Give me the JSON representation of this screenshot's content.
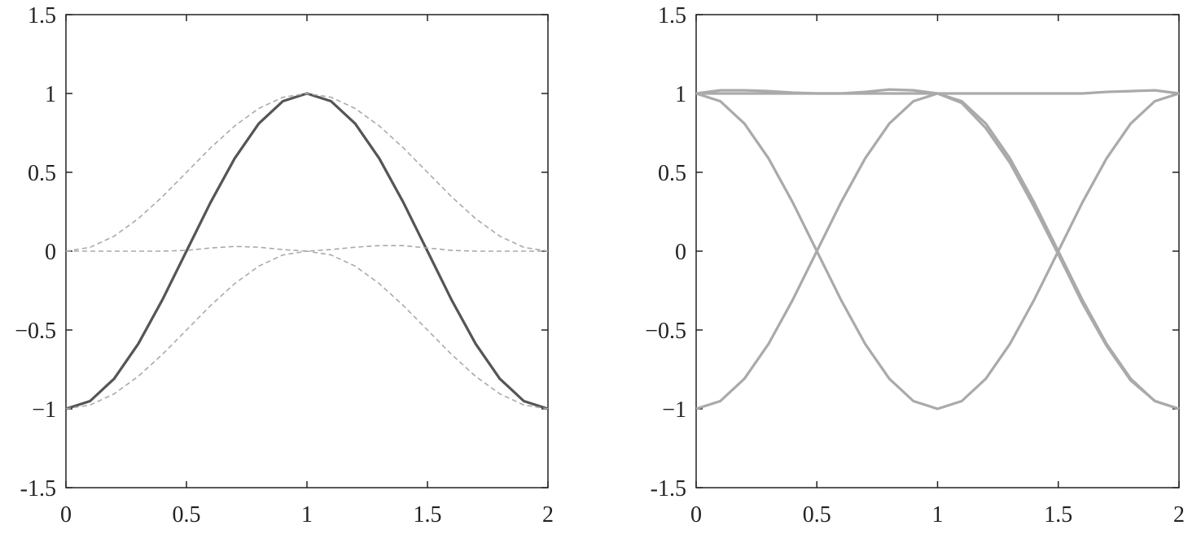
{
  "chart_data": [
    {
      "type": "line",
      "x": [
        0,
        0.1,
        0.2,
        0.3,
        0.4,
        0.5,
        0.6,
        0.7,
        0.8,
        0.9,
        1,
        1.1,
        1.2,
        1.3,
        1.4,
        1.5,
        1.6,
        1.7,
        1.8,
        1.9,
        2
      ],
      "series": [
        {
          "color": "#555555",
          "style": "solid",
          "values": [
            -1,
            -0.951,
            -0.809,
            -0.588,
            -0.309,
            0,
            0.309,
            0.588,
            0.809,
            0.951,
            1,
            0.951,
            0.809,
            0.588,
            0.309,
            0,
            -0.309,
            -0.588,
            -0.809,
            -0.951,
            -1
          ]
        },
        {
          "color": "#aaaaaa",
          "style": "dashed",
          "values": [
            0,
            0.024,
            0.095,
            0.206,
            0.345,
            0.5,
            0.655,
            0.794,
            0.905,
            0.976,
            1,
            0.976,
            0.905,
            0.794,
            0.655,
            0.5,
            0.345,
            0.206,
            0.095,
            0.024,
            0
          ]
        },
        {
          "color": "#aaaaaa",
          "style": "dashed",
          "values": [
            -1,
            -0.976,
            -0.905,
            -0.794,
            -0.655,
            -0.5,
            -0.345,
            -0.206,
            -0.095,
            -0.024,
            0,
            -0.024,
            -0.095,
            -0.206,
            -0.345,
            -0.5,
            -0.655,
            -0.794,
            -0.905,
            -0.976,
            -1
          ]
        },
        {
          "color": "#aaaaaa",
          "style": "dashed",
          "values": [
            0,
            0,
            0,
            0,
            0,
            0.005,
            0.02,
            0.03,
            0.025,
            0.01,
            0,
            0.01,
            0.025,
            0.035,
            0.035,
            0.02,
            0.005,
            0,
            0,
            0,
            0
          ]
        }
      ],
      "xlim": [
        0,
        2
      ],
      "xticks": [
        0,
        0.5,
        1,
        1.5,
        2
      ],
      "ylim": [
        -1.5,
        1.5
      ],
      "yticks": [
        -1.5,
        {
          "value": -1,
          "label": "−1"
        },
        {
          "value": -0.5,
          "label": "−0.5"
        },
        0,
        0.5,
        1,
        1.5
      ],
      "grid": false
    },
    {
      "type": "line",
      "x": [
        0,
        0.1,
        0.2,
        0.3,
        0.4,
        0.5,
        0.6,
        0.7,
        0.8,
        0.9,
        1,
        1.1,
        1.2,
        1.3,
        1.4,
        1.5,
        1.6,
        1.7,
        1.8,
        1.9,
        2
      ],
      "series": [
        {
          "color": "#aaaaaa",
          "style": "solid",
          "values": [
            1,
            0.951,
            0.809,
            0.588,
            0.309,
            0,
            -0.309,
            -0.588,
            -0.809,
            -0.951,
            -1,
            -0.951,
            -0.809,
            -0.588,
            -0.309,
            0,
            0.309,
            0.588,
            0.809,
            0.951,
            1
          ]
        },
        {
          "color": "#aaaaaa",
          "style": "solid",
          "values": [
            -1,
            -0.951,
            -0.809,
            -0.588,
            -0.309,
            0,
            0.309,
            0.588,
            0.809,
            0.951,
            1,
            0.951,
            0.809,
            0.588,
            0.309,
            0,
            -0.309,
            -0.588,
            -0.809,
            -0.951,
            -1
          ]
        },
        {
          "color": "#aaaaaa",
          "style": "solid",
          "values": [
            1,
            1.02,
            1.02,
            1.015,
            1.005,
            1,
            1,
            1.01,
            1.025,
            1.02,
            1,
            1,
            1,
            1,
            1,
            1,
            1,
            1.01,
            1.015,
            1.02,
            1
          ]
        },
        {
          "color": "#aaaaaa",
          "style": "solid",
          "values": [
            1,
            1,
            1,
            1,
            1,
            1,
            1,
            1,
            1,
            1,
            1,
            0.94,
            0.78,
            0.56,
            0.28,
            -0.02,
            -0.33,
            -0.6,
            -0.82,
            -0.95,
            -1
          ]
        }
      ],
      "xlim": [
        0,
        2
      ],
      "xticks": [
        0,
        0.5,
        1,
        1.5,
        2
      ],
      "ylim": [
        -1.5,
        1.5
      ],
      "yticks": [
        -1.5,
        {
          "value": -1,
          "label": "−1"
        },
        {
          "value": -0.5,
          "label": "−0.5"
        },
        0,
        0.5,
        1,
        1.5
      ],
      "grid": false
    }
  ]
}
